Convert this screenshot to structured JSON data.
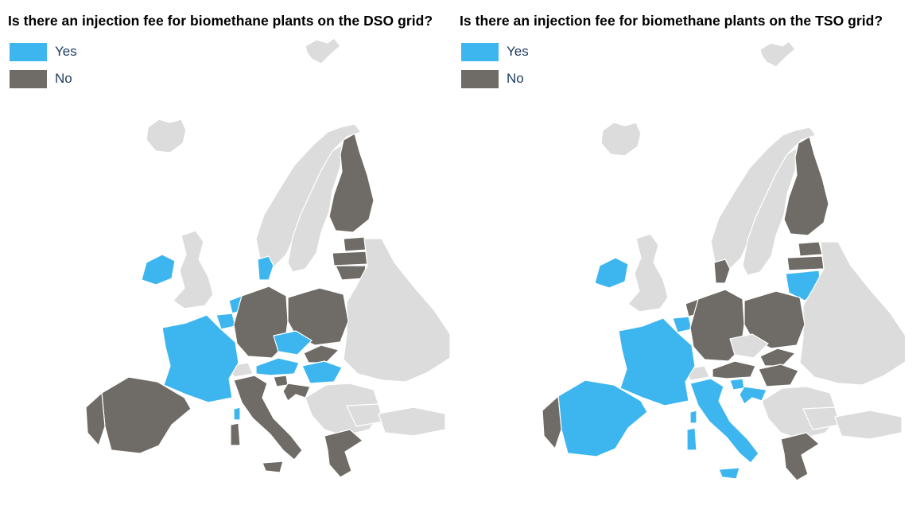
{
  "colors": {
    "yes": "#3db6ef",
    "no": "#6f6c67",
    "other": "#dcdcdc",
    "border": "#ffffff"
  },
  "maps": [
    {
      "title": "Is there an injection fee for biomethane plants on the DSO grid?",
      "legend": [
        {
          "label": "Yes",
          "category": "yes"
        },
        {
          "label": "No",
          "category": "no"
        }
      ]
    },
    {
      "title": "Is there an injection fee for biomethane plants on the TSO grid?",
      "legend": [
        {
          "label": "Yes",
          "category": "yes"
        },
        {
          "label": "No",
          "category": "no"
        }
      ]
    }
  ]
}
